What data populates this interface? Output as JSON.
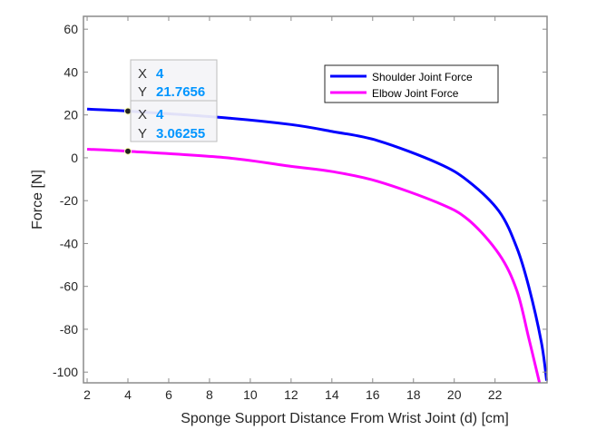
{
  "chart_data": {
    "type": "line",
    "title": "",
    "xlabel": "Sponge Support Distance From Wrist Joint (d) [cm]",
    "ylabel": "Force [N]",
    "xlim": [
      1.82,
      24.55
    ],
    "ylim": [
      -105,
      66
    ],
    "xticks": [
      2,
      4,
      6,
      8,
      10,
      12,
      14,
      16,
      18,
      20,
      22
    ],
    "yticks": [
      60,
      40,
      20,
      0,
      -20,
      -40,
      -60,
      -80,
      -100
    ],
    "grid": false,
    "legend_position": "top-right",
    "series": [
      {
        "name": "Shoulder Joint Force",
        "color": "#0000ff",
        "x": [
          2,
          4,
          8.84,
          12,
          14,
          16.25,
          19.2,
          20.7,
          22.2,
          23.07,
          23.65,
          24.27,
          24.53
        ],
        "y": [
          22.7,
          21.77,
          18.6,
          15.5,
          12.3,
          8.0,
          -2.5,
          -11,
          -25,
          -42,
          -60,
          -86,
          -104
        ]
      },
      {
        "name": "Elbow Joint Force",
        "color": "#ff00ff",
        "x": [
          2,
          4,
          8.84,
          12,
          14,
          16.25,
          19.2,
          20.7,
          22.2,
          23.07,
          23.65,
          24.18
        ],
        "y": [
          4,
          3.06,
          0,
          -4,
          -6.4,
          -11,
          -21,
          -29,
          -45,
          -62,
          -84,
          -105
        ]
      }
    ],
    "datatips": [
      {
        "x_label": "X",
        "x_value": "4",
        "y_label": "Y",
        "y_value": "21.7656",
        "series": "Shoulder Joint Force",
        "x": 4,
        "y": 21.7656
      },
      {
        "x_label": "X",
        "x_value": "4",
        "y_label": "Y",
        "y_value": "3.06255",
        "series": "Elbow Joint Force",
        "x": 4,
        "y": 3.06255
      }
    ]
  }
}
